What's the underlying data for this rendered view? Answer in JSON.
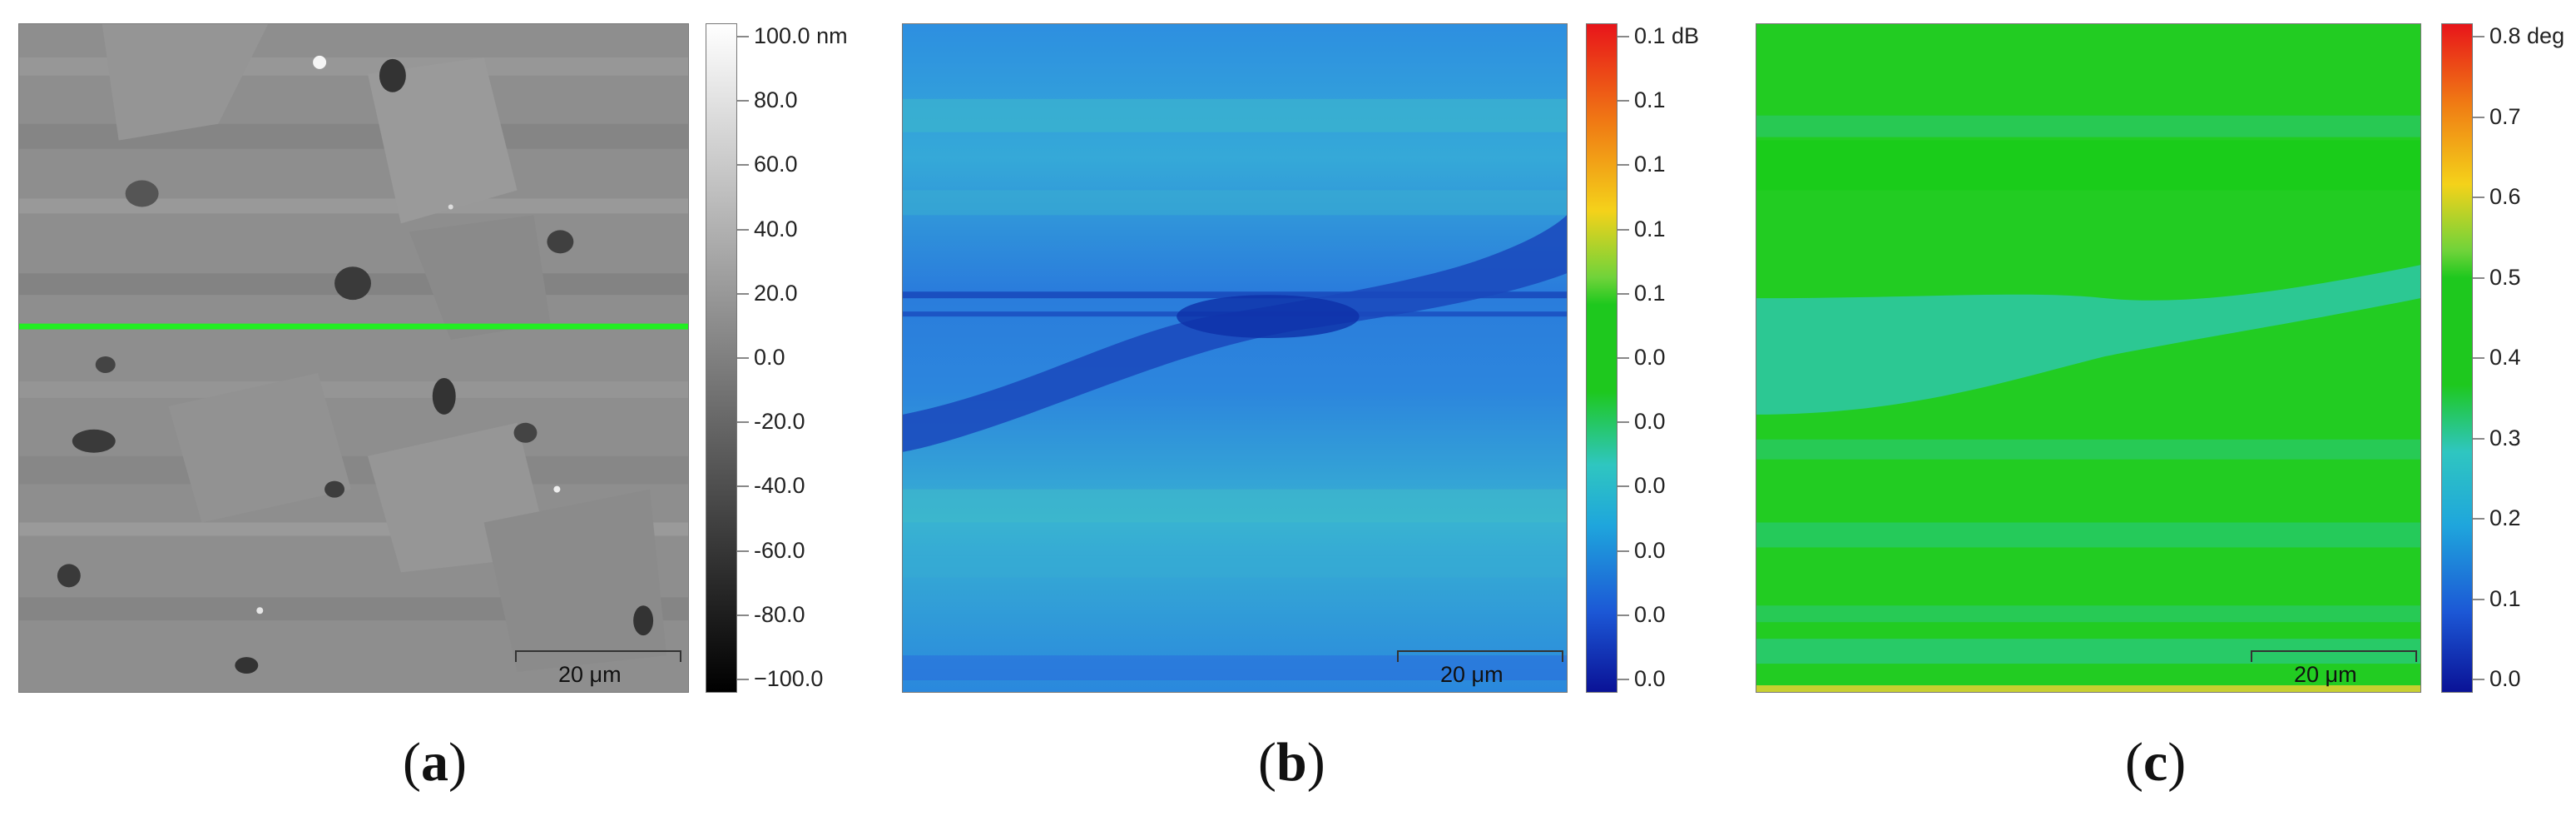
{
  "panels": [
    {
      "caption_letter": "a",
      "colorbar_labels": [
        "100.0 nm",
        "80.0",
        "60.0",
        "40.0",
        "20.0",
        "0.0",
        "-20.0",
        "-40.0",
        "-60.0",
        "-80.0",
        "−100.0"
      ],
      "scale_bar": "20 μm",
      "colormap": "gray",
      "colors": {
        "low": "#000000",
        "high": "#ffffff",
        "field": "#8c8c8c",
        "line_profile": "#22ee22"
      }
    },
    {
      "caption_letter": "b",
      "colorbar_labels": [
        "0.1 dB",
        "0.1",
        "0.1",
        "0.1",
        "0.1",
        "0.0",
        "0.0",
        "0.0",
        "0.0",
        "0.0",
        "0.0"
      ],
      "scale_bar": "20 μm",
      "colormap": "jet",
      "colors": {
        "field": "#2a86dd",
        "dark_band": "#1240b8"
      }
    },
    {
      "caption_letter": "c",
      "colorbar_labels": [
        "0.8 deg",
        "0.7",
        "0.6",
        "0.5",
        "0.4",
        "0.3",
        "0.2",
        "0.1",
        "0.0"
      ],
      "scale_bar": "20 μm",
      "colormap": "jet",
      "colors": {
        "field": "#22cc22",
        "cyan_band": "#2ec8a0"
      }
    }
  ]
}
